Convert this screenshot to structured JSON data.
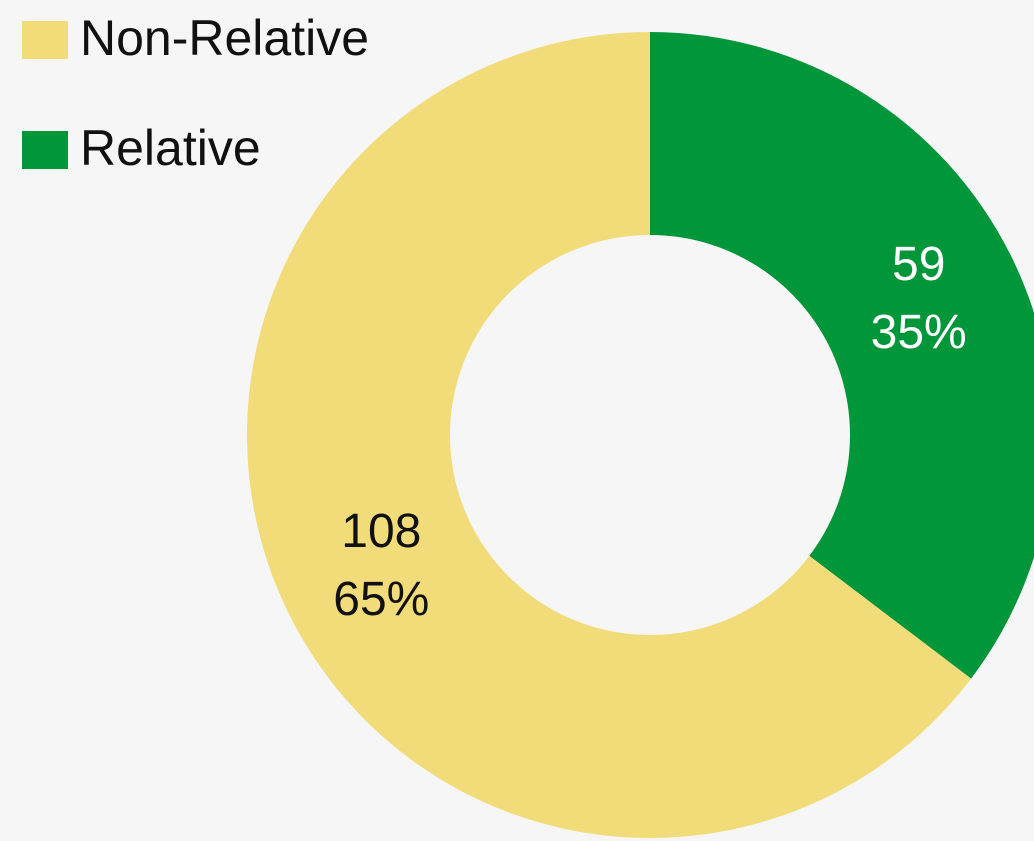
{
  "chart_data": {
    "type": "donut",
    "categories": [
      "Non-Relative",
      "Relative"
    ],
    "values": [
      108,
      59
    ],
    "percents": [
      65,
      35
    ],
    "percent_labels": [
      "65%",
      "35%"
    ],
    "colors": [
      "#f2dc7a",
      "#009639"
    ],
    "label_colors": [
      "#111111",
      "#ffffff"
    ],
    "legend": "top-left"
  }
}
